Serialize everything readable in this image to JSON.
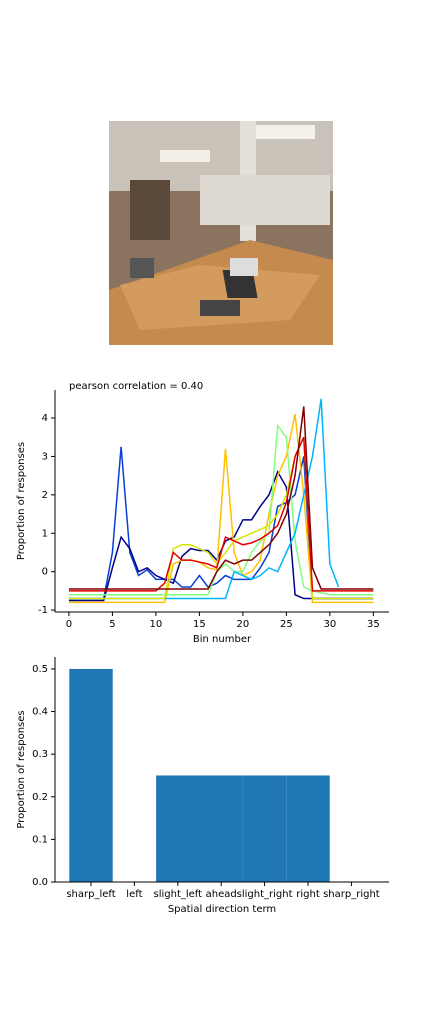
{
  "chart_data": [
    {
      "type": "line",
      "title": "pearson correlation = 0.40",
      "x_label": "Bin number",
      "y_label": "Proportion of responses",
      "x": [
        0,
        1,
        2,
        3,
        4,
        5,
        6,
        7,
        8,
        9,
        10,
        11,
        12,
        13,
        14,
        15,
        16,
        17,
        18,
        19,
        20,
        21,
        22,
        23,
        24,
        25,
        26,
        27,
        28,
        29,
        30,
        31,
        32,
        33,
        34,
        35
      ],
      "xlim": [
        -1.6,
        36.8
      ],
      "xticks": [
        0,
        5,
        10,
        15,
        20,
        25,
        30,
        35
      ],
      "ylim": [
        -1.05,
        4.73
      ],
      "yticks": [
        -1,
        0,
        1,
        2,
        3,
        4
      ],
      "series": [
        {
          "color": "#0a3fd6",
          "values": [
            -0.7,
            -0.7,
            -0.7,
            -0.7,
            -0.7,
            0.5,
            3.25,
            0.5,
            -0.1,
            0.05,
            -0.2,
            -0.2,
            -0.2,
            -0.4,
            -0.4,
            -0.1,
            -0.4,
            -0.3,
            -0.1,
            -0.2,
            -0.2,
            -0.2,
            0.1,
            0.5,
            1.7,
            1.8,
            2.0,
            3.0,
            -0.7,
            -0.7,
            -0.7,
            -0.7,
            -0.7,
            -0.7,
            -0.7,
            -0.7
          ]
        },
        {
          "color": "#00008b",
          "values": [
            -0.75,
            -0.75,
            -0.75,
            -0.75,
            -0.75,
            0.1,
            0.9,
            0.6,
            0.0,
            0.1,
            -0.1,
            -0.2,
            -0.3,
            0.4,
            0.6,
            0.55,
            0.55,
            0.3,
            0.8,
            0.9,
            1.35,
            1.35,
            1.7,
            2.0,
            2.6,
            2.2,
            -0.6,
            -0.7,
            -0.7,
            -0.7,
            -0.7,
            -0.7,
            -0.7,
            -0.7,
            -0.7,
            -0.7
          ]
        },
        {
          "color": "#ffc000",
          "values": [
            -0.8,
            -0.8,
            -0.8,
            -0.8,
            -0.8,
            -0.8,
            -0.8,
            -0.8,
            -0.8,
            -0.8,
            -0.8,
            -0.8,
            0.2,
            0.3,
            0.3,
            0.25,
            0.1,
            0.05,
            3.2,
            0.5,
            -0.1,
            0.0,
            0.3,
            1.5,
            2.5,
            3.0,
            4.1,
            2.0,
            -0.8,
            -0.8,
            -0.8,
            -0.8,
            -0.8,
            -0.8,
            -0.8,
            -0.8
          ]
        },
        {
          "color": "#7fff7f",
          "values": [
            -0.6,
            -0.6,
            -0.6,
            -0.6,
            -0.6,
            -0.6,
            -0.6,
            -0.6,
            -0.6,
            -0.6,
            -0.6,
            -0.6,
            -0.6,
            -0.6,
            -0.6,
            -0.6,
            -0.6,
            0.0,
            0.2,
            0.0,
            0.0,
            0.5,
            0.8,
            1.0,
            3.8,
            3.5,
            0.8,
            -0.4,
            -0.5,
            -0.55,
            -0.6,
            -0.6,
            -0.6,
            -0.6,
            -0.6,
            -0.6
          ]
        },
        {
          "color": "#00b4ff",
          "values": [
            -0.7,
            -0.7,
            -0.7,
            -0.7,
            -0.7,
            -0.7,
            -0.7,
            -0.7,
            -0.7,
            -0.7,
            -0.7,
            -0.7,
            -0.7,
            -0.7,
            -0.7,
            -0.7,
            -0.7,
            -0.7,
            -0.7,
            0.0,
            -0.1,
            -0.2,
            -0.1,
            0.1,
            0.0,
            0.5,
            1.0,
            2.0,
            3.0,
            4.5,
            0.2,
            -0.4,
            null,
            null,
            null,
            null
          ]
        },
        {
          "color": "#d8e600",
          "values": [
            -0.7,
            -0.7,
            -0.7,
            -0.7,
            -0.7,
            -0.7,
            -0.7,
            -0.7,
            -0.7,
            -0.7,
            -0.7,
            -0.7,
            0.6,
            0.7,
            0.7,
            0.6,
            0.5,
            0.2,
            0.5,
            0.8,
            0.9,
            1.0,
            1.1,
            1.2,
            1.5,
            2.0,
            3.0,
            3.5,
            -0.7,
            -0.7,
            -0.7,
            -0.7,
            -0.7,
            -0.7,
            -0.7,
            -0.7
          ]
        },
        {
          "color": "#e00000",
          "values": [
            -0.5,
            -0.5,
            -0.5,
            -0.5,
            -0.5,
            -0.5,
            -0.5,
            -0.5,
            -0.5,
            -0.5,
            -0.5,
            -0.3,
            0.5,
            0.3,
            0.3,
            0.25,
            0.2,
            0.1,
            0.9,
            0.8,
            0.7,
            0.75,
            0.85,
            1.0,
            1.2,
            1.8,
            3.0,
            3.5,
            -0.5,
            -0.5,
            -0.5,
            -0.5,
            -0.5,
            -0.5,
            -0.5,
            -0.5
          ]
        },
        {
          "color": "#7f0000",
          "values": [
            -0.45,
            -0.45,
            -0.45,
            -0.45,
            -0.45,
            -0.45,
            -0.45,
            -0.45,
            -0.45,
            -0.45,
            -0.45,
            -0.45,
            -0.45,
            -0.45,
            -0.45,
            -0.45,
            -0.45,
            0.0,
            0.3,
            0.2,
            0.3,
            0.3,
            0.5,
            0.7,
            1.0,
            1.5,
            2.5,
            4.3,
            0.1,
            -0.45,
            -0.45,
            -0.45,
            -0.45,
            -0.45,
            -0.45,
            -0.45
          ]
        }
      ]
    },
    {
      "type": "bar",
      "x_label": "Spatial direction term",
      "y_label": "Proportion of responses",
      "categories": [
        "sharp_left",
        "left",
        "slight_left",
        "ahead",
        "slight_right",
        "right",
        "sharp_right"
      ],
      "values": [
        0.5,
        0,
        0.25,
        0.25,
        0.25,
        0.25,
        0
      ],
      "color": "#1f77b4",
      "ylim": [
        0,
        0.528
      ],
      "yticks": [
        {
          "value": 0,
          "label": "0.0"
        },
        0.1,
        0.2,
        0.3,
        0.4,
        0.5
      ]
    }
  ]
}
